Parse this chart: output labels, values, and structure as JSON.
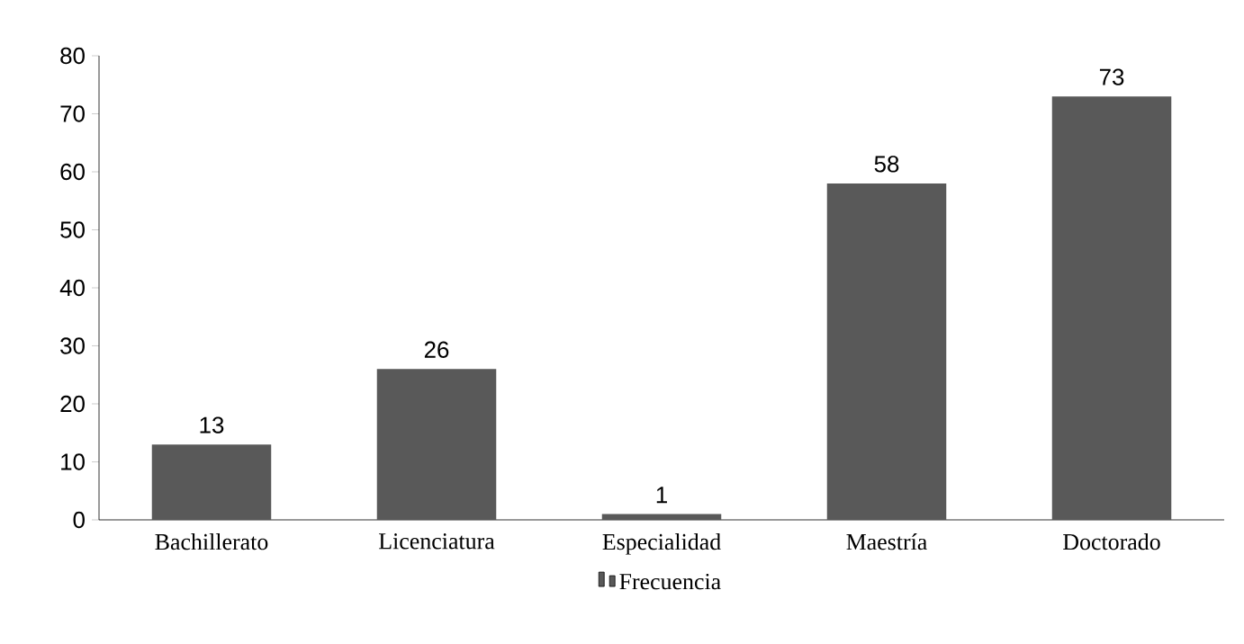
{
  "chart_data": {
    "type": "bar",
    "categories": [
      "Bachillerato",
      "Licenciatura",
      "Especialidad",
      "Maestría",
      "Doctorado"
    ],
    "series": [
      {
        "name": "Frecuencia",
        "color": "#595959",
        "values": [
          13,
          26,
          1,
          58,
          73
        ]
      }
    ],
    "ylim": [
      0,
      80
    ],
    "yticks": [
      0,
      10,
      20,
      30,
      40,
      50,
      60,
      70,
      80
    ],
    "grid": false,
    "legend": "bottom",
    "data_labels": true
  }
}
